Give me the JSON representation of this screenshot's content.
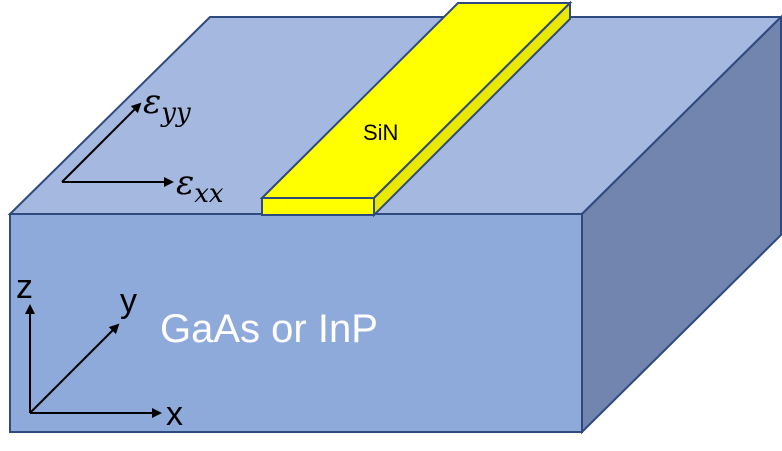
{
  "labels": {
    "strip_material": "SiN",
    "substrate_material": "GaAs or InP",
    "strain_yy_symbol": "ε",
    "strain_yy_subscript": "yy",
    "strain_xx_symbol": "ε",
    "strain_xx_subscript": "xx",
    "axis_z": "z",
    "axis_y": "y",
    "axis_x": "x"
  },
  "colors": {
    "substrate_top": "#A5B8DF",
    "substrate_front": "#8EAADB",
    "substrate_side": "#7185AF",
    "substrate_edge": "#2F4A7F",
    "strip_fill": "#FFFF00",
    "strip_side": "#E8E800",
    "strip_edge": "#2F4A7F",
    "substrate_text": "#FFFFFF",
    "arrow": "#000000",
    "text": "#000000"
  }
}
